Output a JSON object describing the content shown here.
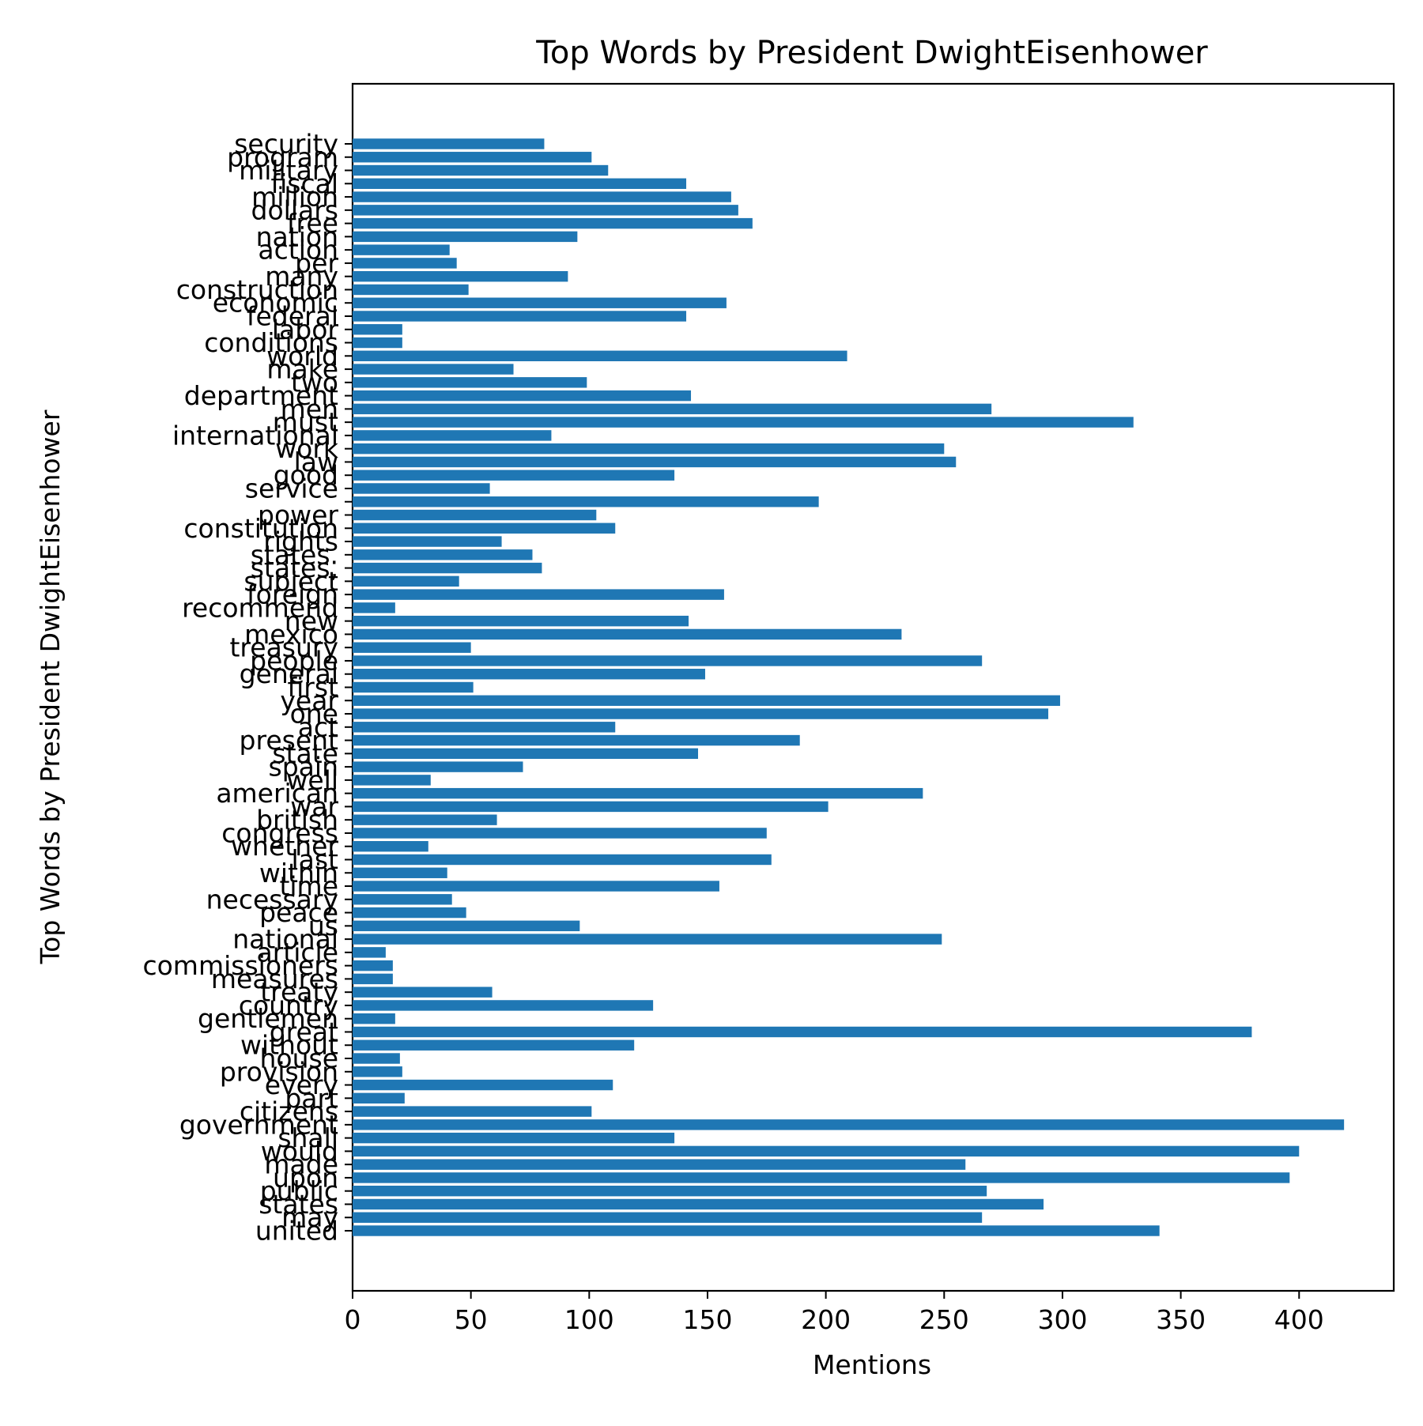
{
  "chart_data": {
    "type": "bar",
    "orientation": "horizontal",
    "title": "Top Words by President DwightEisenhower",
    "xlabel": "Mentions",
    "ylabel": "Top Words by President DwightEisenhower",
    "xlim": [
      0,
      440
    ],
    "xticks": [
      0,
      50,
      100,
      150,
      200,
      250,
      300,
      350,
      400
    ],
    "grid": false,
    "bar_color": "#1f77b4",
    "categories": [
      "united",
      "may",
      "states",
      "public",
      "upon",
      "made",
      "would",
      "shall",
      "government",
      "citizens",
      "part",
      "every",
      "provision",
      "house",
      "without",
      "great",
      "gentlemen",
      "country",
      "treaty",
      "measures",
      "commissioners",
      "article",
      "national",
      "us",
      "peace",
      "necessary",
      "time",
      "within",
      "last",
      "whether",
      "congress",
      "british",
      "war",
      "american",
      "well",
      "spain",
      "state",
      "present",
      "act",
      "one",
      "year",
      "first",
      "general",
      "people",
      "treasury",
      "mexico",
      "new",
      "recommend",
      "foreign",
      "subject",
      "states,",
      "states.",
      "rights",
      "constitution",
      "power",
      "",
      "service",
      "good",
      "law",
      "work",
      "international",
      "must",
      "men",
      "department",
      "two",
      "make",
      "world",
      "conditions",
      "labor",
      "federal",
      "economic",
      "construction",
      "many",
      "per",
      "action",
      "nation",
      "free",
      "dollars",
      "million",
      "fiscal",
      "military",
      "program",
      "security"
    ],
    "values": [
      341,
      266,
      292,
      268,
      396,
      259,
      400,
      136,
      419,
      101,
      22,
      110,
      21,
      20,
      119,
      380,
      18,
      127,
      59,
      17,
      17,
      14,
      249,
      96,
      48,
      42,
      155,
      40,
      177,
      32,
      175,
      61,
      201,
      241,
      33,
      72,
      146,
      189,
      111,
      294,
      299,
      51,
      149,
      266,
      50,
      232,
      142,
      18,
      157,
      45,
      80,
      76,
      63,
      111,
      103,
      197,
      58,
      136,
      255,
      250,
      84,
      330,
      270,
      143,
      99,
      68,
      209,
      21,
      21,
      141,
      158,
      49,
      91,
      44,
      41,
      95,
      169,
      163,
      160,
      141,
      108,
      101,
      81
    ]
  }
}
